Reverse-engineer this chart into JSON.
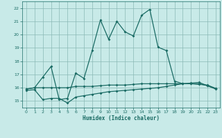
{
  "xlabel": "Humidex (Indice chaleur)",
  "bg_color": "#c8eae8",
  "grid_color": "#8ab8b5",
  "line_color": "#1a6b64",
  "xlim": [
    -0.5,
    23.5
  ],
  "ylim": [
    14.5,
    22.5
  ],
  "x_ticks": [
    0,
    1,
    2,
    3,
    4,
    5,
    6,
    7,
    8,
    9,
    10,
    11,
    12,
    13,
    14,
    15,
    16,
    17,
    18,
    19,
    20,
    21,
    22,
    23
  ],
  "y_ticks": [
    15,
    16,
    17,
    18,
    19,
    20,
    21,
    22
  ],
  "series1_x": [
    0,
    1,
    2,
    3,
    4,
    5,
    6,
    7,
    8,
    9,
    10,
    11,
    12,
    13,
    14,
    15,
    16,
    17,
    18,
    19,
    20,
    21,
    22,
    23
  ],
  "series1_y": [
    15.9,
    16.0,
    16.8,
    17.6,
    15.1,
    15.2,
    17.1,
    16.7,
    18.8,
    21.1,
    19.65,
    21.0,
    20.2,
    19.9,
    21.45,
    21.9,
    19.05,
    18.8,
    16.5,
    16.3,
    16.3,
    16.3,
    16.15,
    15.9
  ],
  "series2_x": [
    0,
    1,
    2,
    3,
    4,
    5,
    6,
    7,
    8,
    9,
    10,
    11,
    12,
    13,
    14,
    15,
    16,
    17,
    18,
    19,
    20,
    21,
    22,
    23
  ],
  "series2_y": [
    15.9,
    16.0,
    16.0,
    16.0,
    16.0,
    16.0,
    16.1,
    16.1,
    16.1,
    16.15,
    16.2,
    16.2,
    16.2,
    16.25,
    16.3,
    16.3,
    16.3,
    16.3,
    16.3,
    16.3,
    16.3,
    16.25,
    16.2,
    15.95
  ],
  "series3_x": [
    0,
    1,
    2,
    3,
    4,
    5,
    6,
    7,
    8,
    9,
    10,
    11,
    12,
    13,
    14,
    15,
    16,
    17,
    18,
    19,
    20,
    21,
    22,
    23
  ],
  "series3_y": [
    15.8,
    15.85,
    15.1,
    15.2,
    15.2,
    14.85,
    15.3,
    15.4,
    15.5,
    15.6,
    15.7,
    15.75,
    15.8,
    15.85,
    15.9,
    15.95,
    16.0,
    16.1,
    16.2,
    16.3,
    16.35,
    16.4,
    16.15,
    15.95
  ]
}
